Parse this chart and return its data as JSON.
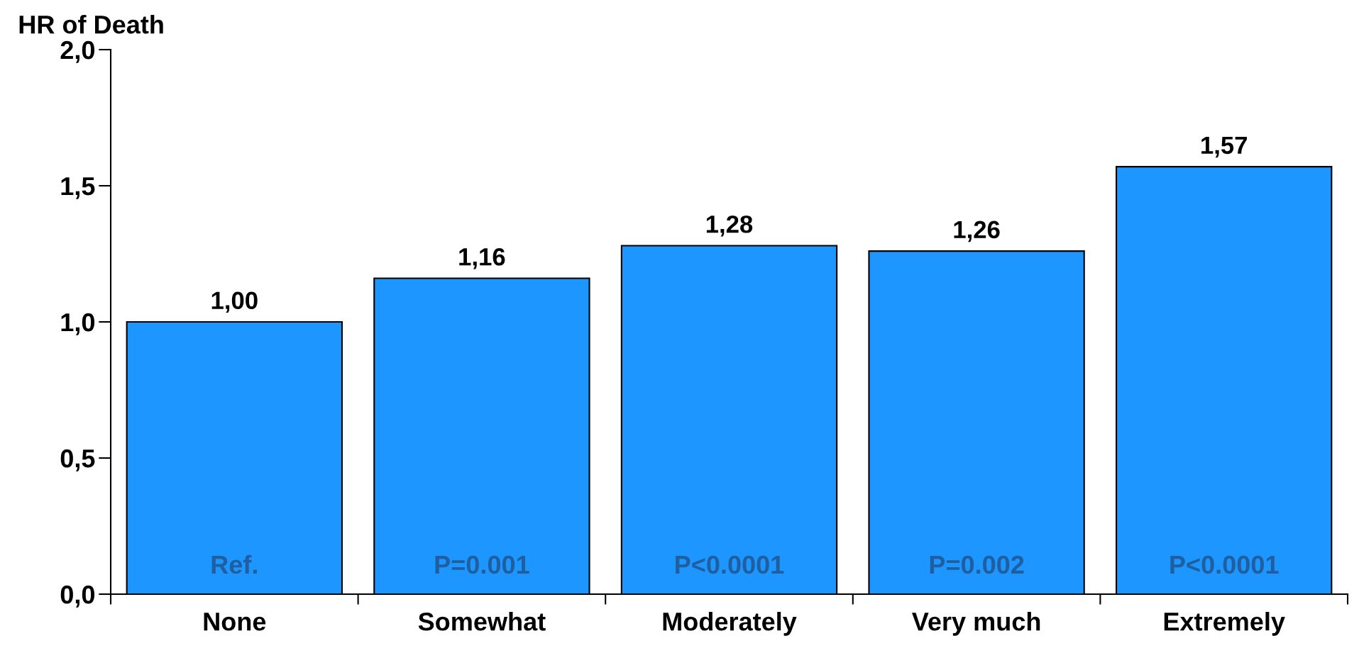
{
  "chart_data": {
    "type": "bar",
    "ylabel": "HR of Death",
    "categories": [
      "None",
      "Somewhat",
      "Moderately",
      "Very much",
      "Extremely"
    ],
    "values": [
      1.0,
      1.16,
      1.28,
      1.26,
      1.57
    ],
    "value_labels": [
      "1,00",
      "1,16",
      "1,28",
      "1,26",
      "1,57"
    ],
    "color": "#1e96ff",
    "ylim": [
      0,
      2
    ],
    "yticks": [
      {
        "value": 0,
        "label": "0,0"
      },
      {
        "value": 0.5,
        "label": "0,5"
      },
      {
        "value": 1,
        "label": "1,0"
      },
      {
        "value": 1.5,
        "label": "1,5"
      },
      {
        "value": 2,
        "label": "2,0"
      }
    ],
    "grid": false,
    "legend": false,
    "annotations": [
      "Ref.",
      "P=0.001",
      "P<0.0001",
      "P=0.002",
      "P<0.0001"
    ]
  }
}
